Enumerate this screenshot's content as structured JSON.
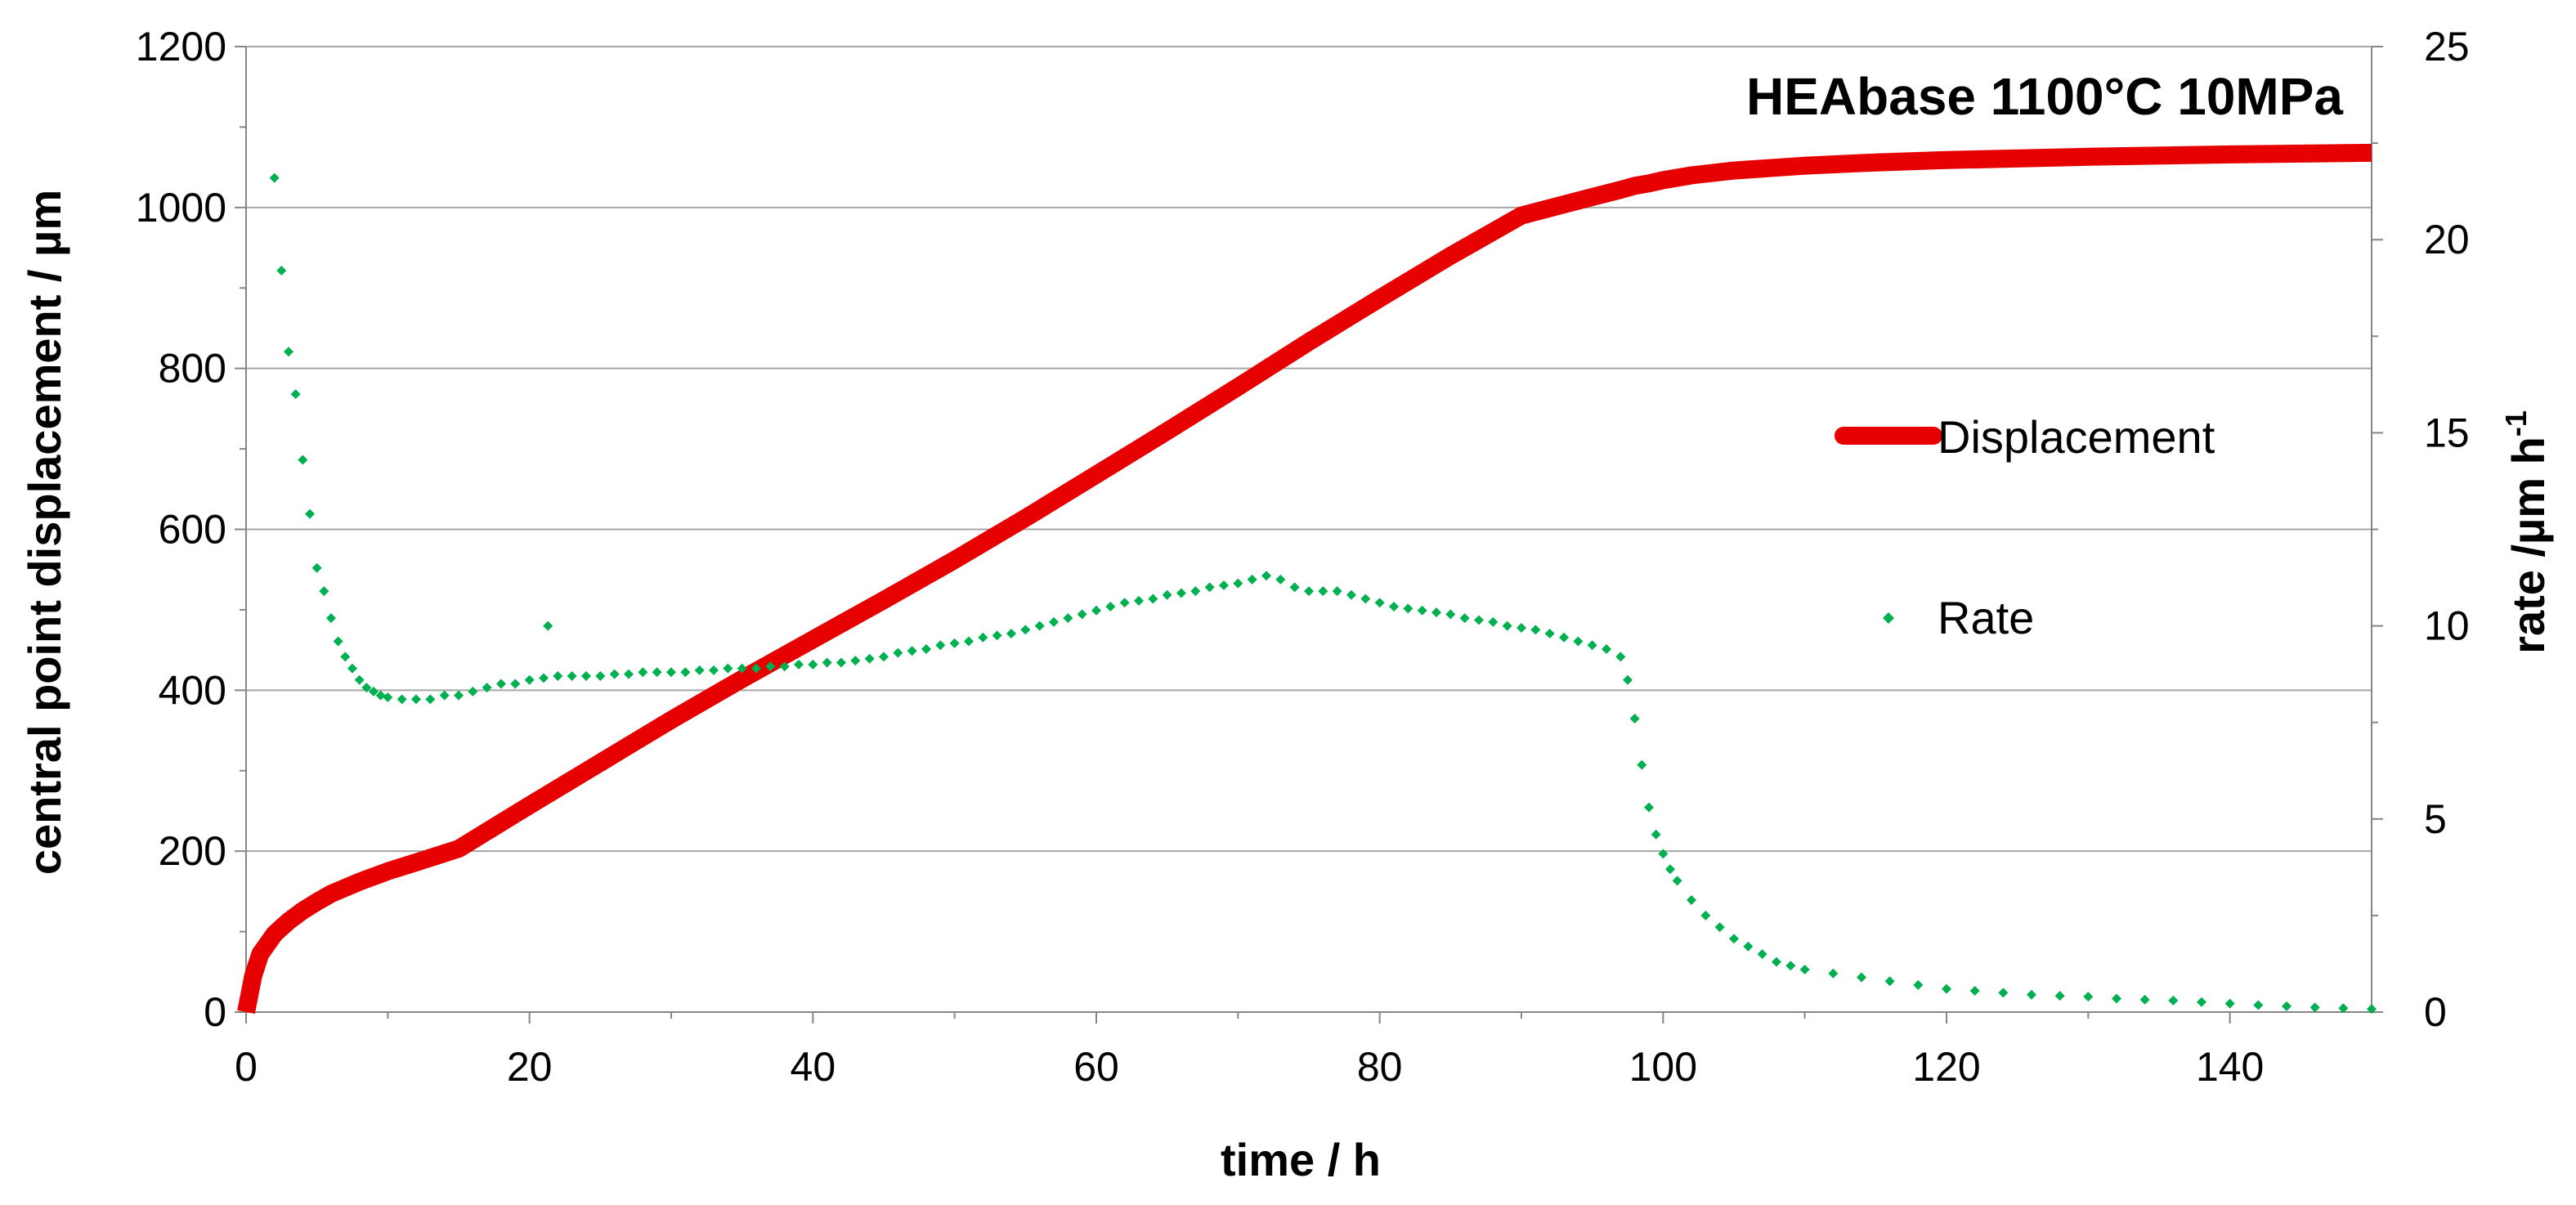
{
  "chart_data": {
    "type": "line",
    "title": "HEAbase 1100°C 10MPa",
    "xlabel": "time / h",
    "ylabel": "central point displacement / µm",
    "y2label": "rate /µm h",
    "y2label_sup": "-1",
    "xlim": [
      0,
      150
    ],
    "ylim": [
      0,
      1200
    ],
    "y2lim": [
      0,
      25
    ],
    "x_ticks": [
      "0",
      "20",
      "40",
      "60",
      "80",
      "100",
      "120",
      "140"
    ],
    "y_ticks": [
      "0",
      "200",
      "400",
      "600",
      "800",
      "1000",
      "1200"
    ],
    "y2_ticks": [
      "0",
      "5",
      "10",
      "15",
      "20",
      "25"
    ],
    "grid": "horizontal",
    "legend_position": "right",
    "series": [
      {
        "name": "Displacement",
        "axis": "left",
        "style": "line",
        "color": "#e60000",
        "x": [
          0,
          0.5,
          1,
          2,
          3,
          4,
          5,
          6,
          8,
          10,
          12,
          15,
          20,
          25,
          30,
          35,
          40,
          45,
          50,
          55,
          60,
          65,
          70,
          75,
          80,
          85,
          90,
          95,
          97,
          98,
          99,
          100,
          102,
          105,
          110,
          115,
          120,
          130,
          140,
          150
        ],
        "y": [
          0,
          45,
          72,
          97,
          113,
          126,
          137,
          147,
          162,
          175,
          186,
          203,
          257,
          310,
          363,
          414,
          463,
          512,
          562,
          614,
          668,
          722,
          777,
          833,
          887,
          940,
          990,
          1013,
          1022,
          1027,
          1030,
          1034,
          1040,
          1046,
          1052,
          1056,
          1059,
          1063,
          1066,
          1068
        ]
      },
      {
        "name": "Rate",
        "axis": "right",
        "style": "markers",
        "color": "#00b050",
        "x": [
          2,
          2.5,
          3,
          3.5,
          4,
          4.5,
          5,
          5.5,
          6,
          6.5,
          7,
          7.5,
          8,
          8.5,
          9,
          9.5,
          10,
          11,
          12,
          13,
          14,
          15,
          16,
          17,
          18,
          19,
          20,
          21,
          21.3,
          22,
          23,
          24,
          25,
          26,
          27,
          28,
          29,
          30,
          31,
          32,
          33,
          34,
          35,
          36,
          37,
          38,
          39,
          40,
          41,
          42,
          43,
          44,
          45,
          46,
          47,
          48,
          49,
          50,
          51,
          52,
          53,
          54,
          55,
          56,
          57,
          58,
          59,
          60,
          61,
          62,
          63,
          64,
          65,
          66,
          67,
          68,
          69,
          70,
          71,
          72,
          73,
          74,
          75,
          76,
          77,
          78,
          79,
          80,
          81,
          82,
          83,
          84,
          85,
          86,
          87,
          88,
          89,
          90,
          91,
          92,
          93,
          94,
          95,
          96,
          97,
          97.5,
          98,
          98.5,
          99,
          99.5,
          100,
          100.5,
          101,
          102,
          103,
          104,
          105,
          106,
          107,
          108,
          109,
          110,
          112,
          114,
          116,
          118,
          120,
          122,
          124,
          126,
          128,
          130,
          132,
          134,
          136,
          138,
          140,
          142,
          144,
          146,
          148,
          150
        ],
        "y": [
          21.6,
          19.2,
          17.1,
          16.0,
          14.3,
          12.9,
          11.5,
          10.9,
          10.2,
          9.6,
          9.2,
          8.9,
          8.6,
          8.4,
          8.3,
          8.2,
          8.15,
          8.1,
          8.1,
          8.1,
          8.2,
          8.2,
          8.3,
          8.4,
          8.5,
          8.5,
          8.6,
          8.65,
          10.0,
          8.7,
          8.7,
          8.7,
          8.7,
          8.75,
          8.75,
          8.8,
          8.8,
          8.8,
          8.8,
          8.85,
          8.85,
          8.9,
          8.9,
          8.9,
          8.95,
          8.95,
          9.0,
          9.0,
          9.05,
          9.05,
          9.1,
          9.15,
          9.2,
          9.3,
          9.35,
          9.4,
          9.5,
          9.55,
          9.6,
          9.7,
          9.75,
          9.8,
          9.9,
          10.0,
          10.1,
          10.2,
          10.3,
          10.4,
          10.5,
          10.6,
          10.65,
          10.7,
          10.8,
          10.85,
          10.9,
          11.0,
          11.05,
          11.1,
          11.2,
          11.3,
          11.2,
          11.0,
          10.9,
          10.9,
          10.9,
          10.8,
          10.7,
          10.6,
          10.5,
          10.45,
          10.4,
          10.35,
          10.3,
          10.2,
          10.15,
          10.1,
          10.0,
          9.95,
          9.9,
          9.8,
          9.7,
          9.6,
          9.5,
          9.4,
          9.2,
          8.6,
          7.6,
          6.4,
          5.3,
          4.6,
          4.1,
          3.7,
          3.4,
          2.9,
          2.5,
          2.2,
          1.9,
          1.7,
          1.5,
          1.3,
          1.2,
          1.1,
          1.0,
          0.9,
          0.8,
          0.7,
          0.6,
          0.55,
          0.5,
          0.45,
          0.42,
          0.4,
          0.35,
          0.32,
          0.3,
          0.26,
          0.22,
          0.18,
          0.15,
          0.12,
          0.1,
          0.08
        ]
      }
    ]
  }
}
